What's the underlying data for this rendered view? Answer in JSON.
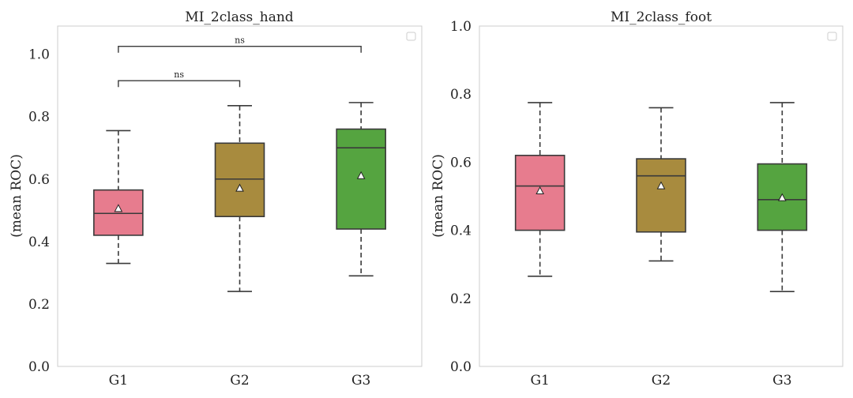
{
  "chart_data": [
    {
      "type": "box",
      "title": "MI_2class_hand",
      "ylabel": "(mean ROC)",
      "xlabel": "",
      "categories": [
        "G1",
        "G2",
        "G3"
      ],
      "ylim": [
        0.0,
        1.09
      ],
      "yticks": [
        "0.0",
        "0.2",
        "0.4",
        "0.6",
        "0.8",
        "1.0"
      ],
      "colors": [
        "#e77c8e",
        "#a88b3e",
        "#55a440"
      ],
      "grid": false,
      "legend": "top-right (empty)",
      "boxes": [
        {
          "whisker_low": 0.33,
          "q1": 0.42,
          "median": 0.49,
          "q3": 0.565,
          "whisker_high": 0.755,
          "mean": 0.505
        },
        {
          "whisker_low": 0.24,
          "q1": 0.48,
          "median": 0.6,
          "q3": 0.715,
          "whisker_high": 0.835,
          "mean": 0.57
        },
        {
          "whisker_low": 0.29,
          "q1": 0.44,
          "median": 0.7,
          "q3": 0.76,
          "whisker_high": 0.845,
          "mean": 0.61
        }
      ],
      "annotations": [
        {
          "from": "G1",
          "to": "G2",
          "y": 0.915,
          "text": "ns"
        },
        {
          "from": "G1",
          "to": "G3",
          "y": 1.025,
          "text": "ns"
        }
      ]
    },
    {
      "type": "box",
      "title": "MI_2class_foot",
      "ylabel": "(mean ROC)",
      "xlabel": "",
      "categories": [
        "G1",
        "G2",
        "G3"
      ],
      "ylim": [
        0.0,
        1.0
      ],
      "yticks": [
        "0.0",
        "0.2",
        "0.4",
        "0.6",
        "0.8",
        "1.0"
      ],
      "colors": [
        "#e77c8e",
        "#a88b3e",
        "#55a440"
      ],
      "grid": false,
      "legend": "top-right (empty)",
      "boxes": [
        {
          "whisker_low": 0.265,
          "q1": 0.4,
          "median": 0.53,
          "q3": 0.62,
          "whisker_high": 0.775,
          "mean": 0.515
        },
        {
          "whisker_low": 0.31,
          "q1": 0.395,
          "median": 0.56,
          "q3": 0.61,
          "whisker_high": 0.76,
          "mean": 0.53
        },
        {
          "whisker_low": 0.22,
          "q1": 0.4,
          "median": 0.49,
          "q3": 0.595,
          "whisker_high": 0.775,
          "mean": 0.495
        }
      ],
      "annotations": []
    }
  ]
}
